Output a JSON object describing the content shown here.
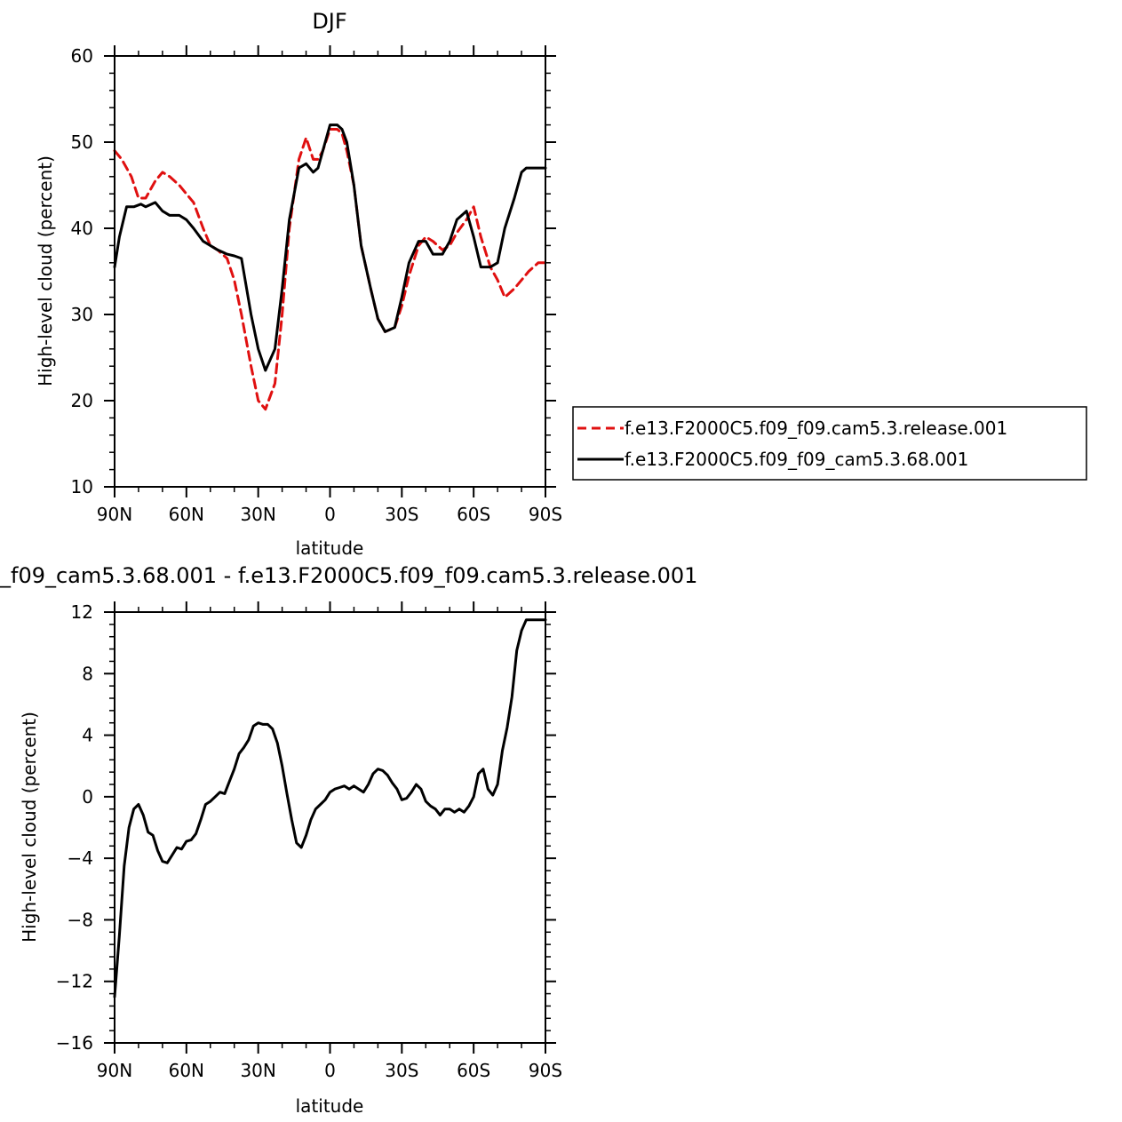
{
  "chart_data": [
    {
      "type": "line",
      "title": "DJF",
      "xlabel": "latitude",
      "ylabel": "High-level cloud (percent)",
      "x_tick_labels": [
        "90N",
        "60N",
        "30N",
        "0",
        "30S",
        "60S",
        "90S"
      ],
      "xlim": [
        -90,
        90
      ],
      "ylim": [
        10,
        60
      ],
      "y_ticks": [
        10,
        20,
        30,
        40,
        50,
        60
      ],
      "grid": false,
      "legend_position": "right",
      "series": [
        {
          "name": "f.e13.F2000C5.f09_f09.cam5.3.release.001",
          "color": "#e01010",
          "dash": "dashed",
          "x": [
            -90,
            -87,
            -83,
            -80,
            -77,
            -73,
            -70,
            -67,
            -63,
            -60,
            -57,
            -53,
            -50,
            -47,
            -43,
            -40,
            -37,
            -33,
            -30,
            -27,
            -23,
            -20,
            -17,
            -13,
            -10,
            -7,
            -5,
            -3,
            0,
            3,
            5,
            7,
            10,
            13,
            17,
            20,
            23,
            27,
            30,
            33,
            37,
            40,
            43,
            47,
            50,
            53,
            57,
            60,
            63,
            67,
            70,
            73,
            77,
            80,
            83,
            87,
            90
          ],
          "y": [
            49,
            48,
            46,
            43.5,
            43.5,
            45.5,
            46.5,
            46,
            45,
            44,
            43,
            40,
            38,
            37.5,
            36.5,
            34,
            30,
            24,
            20,
            19,
            22,
            30,
            40,
            48,
            50.5,
            48,
            48,
            49,
            51.5,
            51.5,
            51,
            49,
            45,
            38,
            33,
            29.5,
            28,
            28.5,
            31,
            34.5,
            38,
            39,
            38.5,
            37.5,
            38,
            39.5,
            41,
            42.5,
            39,
            35.5,
            34,
            32,
            33,
            34,
            35,
            36,
            36
          ]
        },
        {
          "name": "f.e13.F2000C5.f09_f09_cam5.3.68.001",
          "color": "#000000",
          "dash": "solid",
          "x": [
            -90,
            -88,
            -85,
            -82,
            -79,
            -77,
            -73,
            -70,
            -67,
            -63,
            -60,
            -57,
            -53,
            -50,
            -47,
            -43,
            -40,
            -37,
            -33,
            -30,
            -27,
            -23,
            -20,
            -17,
            -13,
            -10,
            -7,
            -5,
            -3,
            0,
            3,
            5,
            7,
            10,
            13,
            17,
            20,
            23,
            27,
            30,
            33,
            37,
            40,
            43,
            47,
            50,
            53,
            57,
            60,
            63,
            67,
            70,
            73,
            77,
            80,
            82,
            85,
            88,
            90
          ],
          "y": [
            35.5,
            39,
            42.5,
            42.5,
            42.8,
            42.5,
            43,
            42,
            41.5,
            41.5,
            41,
            40,
            38.5,
            38,
            37.5,
            37,
            36.8,
            36.5,
            30,
            26,
            23.5,
            26,
            33,
            41,
            47,
            47.5,
            46.5,
            47,
            49,
            52,
            52,
            51.5,
            50,
            45,
            38,
            33,
            29.5,
            28,
            28.5,
            32,
            36,
            38.5,
            38.5,
            37,
            37,
            38.5,
            41,
            42,
            39,
            35.5,
            35.5,
            36,
            40,
            43.5,
            46.5,
            47,
            47,
            47,
            47
          ]
        }
      ]
    },
    {
      "type": "line",
      "title": "_f09_cam5.3.68.001 - f.e13.F2000C5.f09_f09.cam5.3.release.001",
      "xlabel": "latitude",
      "ylabel": "High-level cloud (percent)",
      "x_tick_labels": [
        "90N",
        "60N",
        "30N",
        "0",
        "30S",
        "60S",
        "90S"
      ],
      "xlim": [
        -90,
        90
      ],
      "ylim": [
        -16,
        12
      ],
      "y_ticks": [
        -16,
        -12,
        -8,
        -4,
        0,
        4,
        8,
        12
      ],
      "grid": false,
      "series": [
        {
          "color": "#000000",
          "dash": "solid",
          "x": [
            -90,
            -88,
            -86,
            -84,
            -82,
            -80,
            -78,
            -76,
            -74,
            -72,
            -70,
            -68,
            -66,
            -64,
            -62,
            -60,
            -58,
            -56,
            -54,
            -52,
            -50,
            -48,
            -46,
            -44,
            -42,
            -40,
            -38,
            -36,
            -34,
            -32,
            -30,
            -28,
            -26,
            -24,
            -22,
            -20,
            -18,
            -16,
            -14,
            -12,
            -10,
            -8,
            -6,
            -4,
            -2,
            0,
            2,
            4,
            6,
            8,
            10,
            12,
            14,
            16,
            18,
            20,
            22,
            24,
            26,
            28,
            30,
            32,
            34,
            36,
            38,
            40,
            42,
            44,
            46,
            48,
            50,
            52,
            54,
            56,
            58,
            60,
            62,
            64,
            66,
            68,
            70,
            72,
            74,
            76,
            78,
            80,
            82,
            84,
            86,
            88,
            90
          ],
          "y": [
            -13,
            -9,
            -4.5,
            -2,
            -0.8,
            -0.5,
            -1.2,
            -2.3,
            -2.5,
            -3.5,
            -4.2,
            -4.3,
            -3.8,
            -3.3,
            -3.4,
            -2.9,
            -2.8,
            -2.4,
            -1.5,
            -0.5,
            -0.3,
            0,
            0.3,
            0.2,
            1,
            1.8,
            2.8,
            3.2,
            3.7,
            4.6,
            4.8,
            4.7,
            4.7,
            4.4,
            3.5,
            2,
            0.2,
            -1.5,
            -3,
            -3.3,
            -2.5,
            -1.5,
            -0.8,
            -0.5,
            -0.2,
            0.3,
            0.5,
            0.6,
            0.7,
            0.5,
            0.7,
            0.5,
            0.3,
            0.8,
            1.5,
            1.8,
            1.7,
            1.4,
            0.9,
            0.5,
            -0.2,
            -0.1,
            0.3,
            0.8,
            0.5,
            -0.3,
            -0.6,
            -0.8,
            -1.2,
            -0.8,
            -0.8,
            -1,
            -0.8,
            -1,
            -0.6,
            0,
            1.5,
            1.8,
            0.5,
            0.1,
            0.8,
            3,
            4.5,
            6.5,
            9.5,
            10.8,
            11.5,
            11.5,
            11.5,
            11.5,
            11.5
          ]
        }
      ]
    }
  ]
}
